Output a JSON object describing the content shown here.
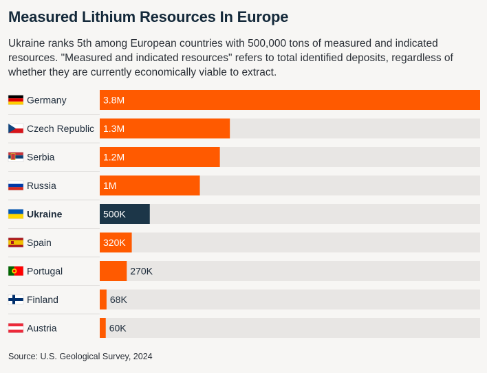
{
  "title": "Measured Lithium Resources In Europe",
  "subtitle": "Ukraine ranks 5th among European countries with 500,000 tons of measured and indicated resources. \"Measured and indicated resources\" refers to total identified deposits, regardless of whether they are currently economically viable to extract.",
  "source": "Source: U.S. Geological Survey, 2024",
  "colors": {
    "bar": "#ff5a00",
    "highlight": "#1c3648",
    "track": "#e8e6e4",
    "background": "#f7f6f4"
  },
  "chart_data": {
    "type": "bar",
    "orientation": "horizontal",
    "unit": "tons",
    "xlim": [
      0,
      3800000
    ],
    "highlight": "Ukraine",
    "categories": [
      "Germany",
      "Czech Republic",
      "Serbia",
      "Russia",
      "Ukraine",
      "Spain",
      "Portugal",
      "Finland",
      "Austria"
    ],
    "values": [
      3800000,
      1300000,
      1200000,
      1000000,
      500000,
      320000,
      270000,
      68000,
      60000
    ],
    "labels": [
      "3.8M",
      "1.3M",
      "1.2M",
      "1M",
      "500K",
      "320K",
      "270K",
      "68K",
      "60K"
    ],
    "flags": [
      "flag-germany",
      "flag-czech-republic",
      "flag-serbia",
      "flag-russia",
      "flag-ukraine",
      "flag-spain",
      "flag-portugal",
      "flag-finland",
      "flag-austria"
    ]
  }
}
